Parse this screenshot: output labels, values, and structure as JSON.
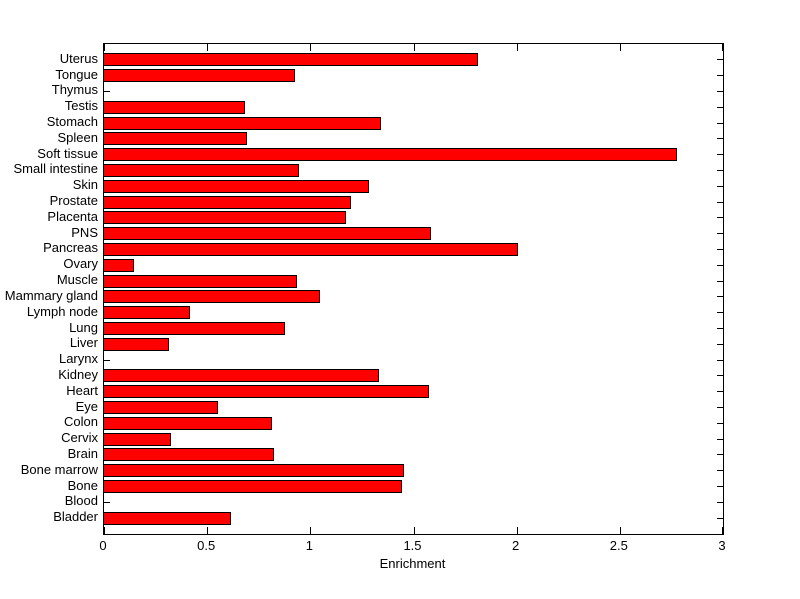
{
  "figure": {
    "background": "#ffffff",
    "axis_color": "#000000"
  },
  "chart_data": {
    "type": "bar",
    "orientation": "horizontal",
    "xlabel": "Enrichment",
    "xlim": [
      0,
      3
    ],
    "xtick_values": [
      0,
      0.5,
      1,
      1.5,
      2,
      2.5,
      3
    ],
    "xtick_labels": [
      "0",
      "0.5",
      "1",
      "1.5",
      "2",
      "2.5",
      "3"
    ],
    "grid": false,
    "bar_color": "#ff0000",
    "bar_edge_color": "#000000",
    "categories": [
      "Uterus",
      "Tongue",
      "Thymus",
      "Testis",
      "Stomach",
      "Spleen",
      "Soft tissue",
      "Small intestine",
      "Skin",
      "Prostate",
      "Placenta",
      "PNS",
      "Pancreas",
      "Ovary",
      "Muscle",
      "Mammary gland",
      "Lymph node",
      "Lung",
      "Liver",
      "Larynx",
      "Kidney",
      "Heart",
      "Eye",
      "Colon",
      "Cervix",
      "Brain",
      "Bone marrow",
      "Bone",
      "Blood",
      "Bladder"
    ],
    "values": [
      1.81,
      0.92,
      0,
      0.68,
      1.34,
      0.69,
      2.77,
      0.94,
      1.28,
      1.19,
      1.17,
      1.58,
      2.0,
      0.14,
      0.93,
      1.04,
      0.41,
      0.87,
      0.31,
      0,
      1.33,
      1.57,
      0.55,
      0.81,
      0.32,
      0.82,
      1.45,
      1.44,
      0,
      0.61
    ]
  }
}
